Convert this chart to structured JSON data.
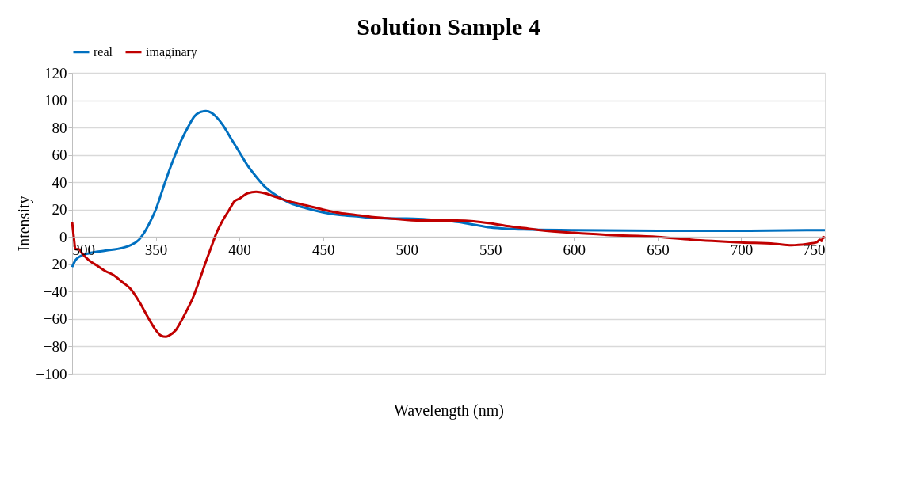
{
  "chart_data": {
    "type": "line",
    "title": "Solution Sample 4",
    "xlabel": "Wavelength (nm)",
    "ylabel": "Intensity",
    "xlim": [
      300,
      750
    ],
    "xticks": [
      300,
      350,
      400,
      450,
      500,
      550,
      600,
      650,
      700,
      750
    ],
    "ylim": [
      -100,
      120
    ],
    "yticks": [
      -100,
      -80,
      -60,
      -40,
      -20,
      0,
      20,
      40,
      60,
      80,
      100,
      120
    ],
    "grid": "y",
    "legend": "top",
    "marker": "none",
    "line_style": "solid",
    "series": [
      {
        "name": "real",
        "color": "#0070c0",
        "x": [
          300,
          302,
          305,
          310,
          320,
          330,
          335,
          340,
          343,
          347,
          350,
          355,
          360,
          365,
          370,
          373,
          376,
          380,
          383,
          386,
          390,
          395,
          400,
          405,
          410,
          415,
          420,
          430,
          440,
          450,
          460,
          470,
          480,
          490,
          500,
          510,
          520,
          530,
          540,
          550,
          560,
          570,
          600,
          650,
          700,
          750
        ],
        "values": [
          -22,
          -17,
          -14,
          -12,
          -10,
          -8,
          -6,
          -2,
          3,
          12,
          20,
          38,
          55,
          70,
          82,
          88,
          91,
          92,
          91,
          88,
          82,
          72,
          62,
          52,
          44,
          37,
          32,
          25,
          21,
          18,
          16,
          15,
          14,
          13.5,
          13.5,
          13,
          12,
          11,
          9,
          7,
          6,
          5.5,
          5,
          4.5,
          4.5,
          5
        ]
      },
      {
        "name": "imaginary",
        "color": "#c00000",
        "x": [
          300,
          301,
          302,
          304,
          306,
          310,
          315,
          320,
          325,
          330,
          335,
          340,
          345,
          350,
          353,
          356,
          358,
          362,
          365,
          368,
          372,
          376,
          380,
          383,
          386,
          390,
          394,
          397,
          400,
          405,
          410,
          415,
          420,
          430,
          440,
          450,
          460,
          470,
          480,
          490,
          500,
          510,
          520,
          530,
          540,
          550,
          560,
          570,
          580,
          600,
          620,
          650,
          670,
          700,
          720,
          730,
          740,
          745,
          747,
          748,
          749,
          750
        ],
        "values": [
          11,
          0,
          -9,
          -9,
          -12,
          -17,
          -21,
          -25,
          -28,
          -33,
          -38,
          -47,
          -58,
          -68,
          -72,
          -73,
          -72,
          -68,
          -62,
          -55,
          -45,
          -32,
          -18,
          -8,
          2,
          12,
          20,
          26,
          28,
          32,
          33,
          32,
          30,
          26,
          23,
          20,
          17.5,
          16,
          14.5,
          13.5,
          12.5,
          12,
          12,
          12,
          11.5,
          10,
          8,
          6.5,
          5,
          3,
          1.5,
          0,
          -2,
          -4,
          -5,
          -6,
          -5,
          -4,
          -2,
          -3,
          0,
          -1
        ]
      }
    ]
  }
}
